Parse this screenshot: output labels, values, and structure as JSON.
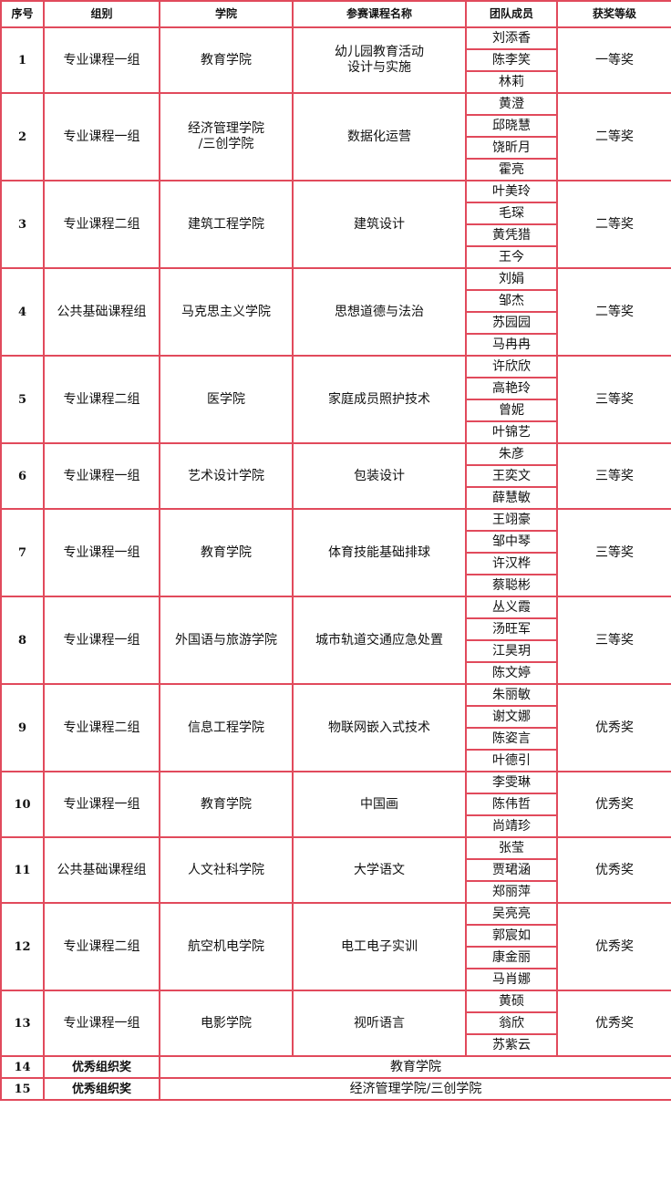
{
  "headers": [
    "序号",
    "组别",
    "学院",
    "参赛课程名称",
    "团队成员",
    "获奖等级"
  ],
  "rows": [
    {
      "no": "1",
      "group": "专业课程一组",
      "college": "教育学院",
      "course": "幼儿园教育活动\n设计与实施",
      "members": [
        "刘添香",
        "陈李笑",
        "林莉"
      ],
      "award": "一等奖"
    },
    {
      "no": "2",
      "group": "专业课程一组",
      "college": "经济管理学院\n/三创学院",
      "course": "数据化运营",
      "members": [
        "黄澄",
        "邱晓慧",
        "饶昕月",
        "霍亮"
      ],
      "award": "二等奖"
    },
    {
      "no": "3",
      "group": "专业课程二组",
      "college": "建筑工程学院",
      "course": "建筑设计",
      "members": [
        "叶美玲",
        "毛琛",
        "黄凭猎",
        "王今"
      ],
      "award": "二等奖"
    },
    {
      "no": "4",
      "group": "公共基础课程组",
      "college": "马克思主义学院",
      "course": "思想道德与法治",
      "members": [
        "刘娟",
        "邹杰",
        "苏园园",
        "马冉冉"
      ],
      "award": "二等奖"
    },
    {
      "no": "5",
      "group": "专业课程二组",
      "college": "医学院",
      "course": "家庭成员照护技术",
      "members": [
        "许欣欣",
        "高艳玲",
        "曾妮",
        "叶锦艺"
      ],
      "award": "三等奖"
    },
    {
      "no": "6",
      "group": "专业课程一组",
      "college": "艺术设计学院",
      "course": "包装设计",
      "members": [
        "朱彦",
        "王奕文",
        "薛慧敏"
      ],
      "award": "三等奖"
    },
    {
      "no": "7",
      "group": "专业课程一组",
      "college": "教育学院",
      "course": "体育技能基础排球",
      "members": [
        "王翊豪",
        "邹中琴",
        "许汉桦",
        "蔡聪彬"
      ],
      "award": "三等奖"
    },
    {
      "no": "8",
      "group": "专业课程一组",
      "college": "外国语与旅游学院",
      "course": "城市轨道交通应急处置",
      "members": [
        "丛义霞",
        "汤旺军",
        "江昊玥",
        "陈文婷"
      ],
      "award": "三等奖"
    },
    {
      "no": "9",
      "group": "专业课程二组",
      "college": "信息工程学院",
      "course": "物联网嵌入式技术",
      "members": [
        "朱丽敏",
        "谢文娜",
        "陈姿言",
        "叶德引"
      ],
      "award": "优秀奖"
    },
    {
      "no": "10",
      "group": "专业课程一组",
      "college": "教育学院",
      "course": "中国画",
      "members": [
        "李雯琳",
        "陈伟哲",
        "尚靖珍"
      ],
      "award": "优秀奖"
    },
    {
      "no": "11",
      "group": "公共基础课程组",
      "college": "人文社科学院",
      "course": "大学语文",
      "members": [
        "张莹",
        "贾珺涵",
        "郑丽萍"
      ],
      "award": "优秀奖"
    },
    {
      "no": "12",
      "group": "专业课程二组",
      "college": "航空机电学院",
      "course": "电工电子实训",
      "members": [
        "吴亮亮",
        "郭宸如",
        "康金丽",
        "马肖娜"
      ],
      "award": "优秀奖"
    },
    {
      "no": "13",
      "group": "专业课程一组",
      "college": "电影学院",
      "course": "视听语言",
      "members": [
        "黄硕",
        "翁欣",
        "苏紫云"
      ],
      "award": "优秀奖"
    }
  ],
  "org_awards": [
    {
      "no": "14",
      "award": "优秀组织奖",
      "college": "教育学院"
    },
    {
      "no": "15",
      "award": "优秀组织奖",
      "college": "经济管理学院/三创学院"
    }
  ]
}
